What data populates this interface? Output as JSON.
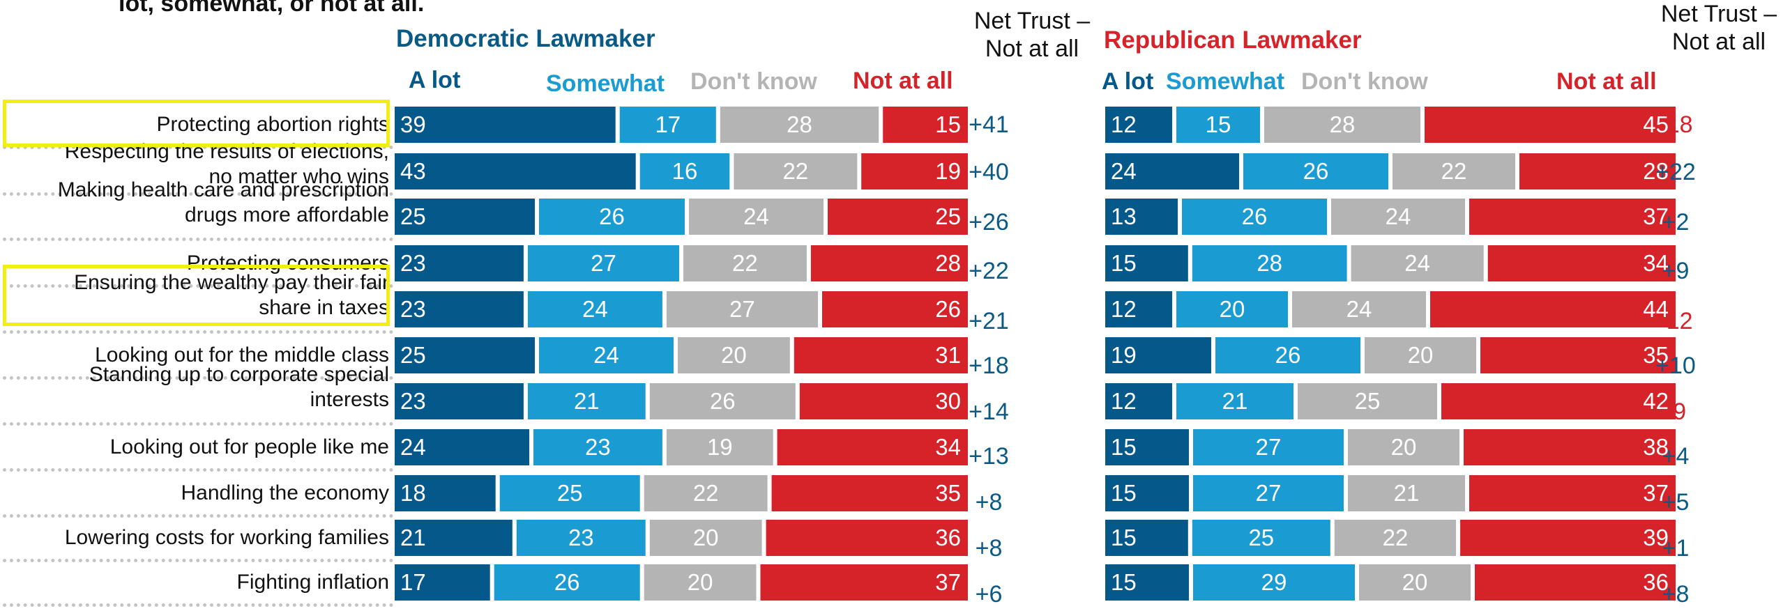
{
  "question_fragment": "lot, somewhat, or not at all.",
  "colors": {
    "a_lot": "#04588a",
    "somewhat": "#1a9bd1",
    "dont_know": "#b4b4b4",
    "not_at_all": "#d6232a",
    "highlight": "#f2ee12",
    "net_positive": "#0b5a86",
    "net_negative": "#d6232a",
    "title_dem": "#0b5a86",
    "title_rep": "#d6232a"
  },
  "column_headers": {
    "a_lot": "A lot",
    "somewhat": "Somewhat",
    "dont_know": "Don't know",
    "not_at_all": "Not at all",
    "net_trust": "Net Trust – Not at all"
  },
  "chart_data": [
    {
      "type": "bar",
      "stacked": true,
      "orientation": "horizontal",
      "title": "Democratic Lawmaker",
      "categories": [
        "Protecting abortion rights",
        "Respecting the results of elections, no matter who wins",
        "Making health care and prescription drugs more affordable",
        "Protecting consumers",
        "Ensuring the wealthy pay their fair share in taxes",
        "Looking out for the middle class",
        "Standing up to corporate special interests",
        "Looking out for people like me",
        "Handling the economy",
        "Lowering costs for working families",
        "Fighting inflation"
      ],
      "series": [
        {
          "name": "A lot",
          "values": [
            39,
            43,
            25,
            23,
            23,
            25,
            23,
            24,
            18,
            21,
            17
          ]
        },
        {
          "name": "Somewhat",
          "values": [
            17,
            16,
            26,
            27,
            24,
            24,
            21,
            23,
            25,
            23,
            26
          ]
        },
        {
          "name": "Don't know",
          "values": [
            28,
            22,
            24,
            22,
            27,
            20,
            26,
            19,
            22,
            20,
            20
          ]
        },
        {
          "name": "Not at all",
          "values": [
            15,
            19,
            25,
            28,
            26,
            31,
            30,
            34,
            35,
            36,
            37
          ]
        }
      ],
      "net_trust": [
        "+41",
        "+40",
        "+26",
        "+22",
        "+21",
        "+18",
        "+14",
        "+13",
        "+8",
        "+8",
        "+6"
      ],
      "highlighted": [
        0,
        4
      ]
    },
    {
      "type": "bar",
      "stacked": true,
      "orientation": "horizontal",
      "title": "Republican Lawmaker",
      "categories": [
        "Protecting abortion rights",
        "Respecting the results of elections, no matter who wins",
        "Making health care and prescription drugs more affordable",
        "Protecting consumers",
        "Ensuring the wealthy pay their fair share in taxes",
        "Looking out for the middle class",
        "Standing up to corporate special interests",
        "Looking out for people like me",
        "Handling the economy",
        "Lowering costs for working families",
        "Fighting inflation"
      ],
      "series": [
        {
          "name": "A lot",
          "values": [
            12,
            24,
            13,
            15,
            12,
            19,
            12,
            15,
            15,
            15,
            15
          ]
        },
        {
          "name": "Somewhat",
          "values": [
            15,
            26,
            26,
            28,
            20,
            26,
            21,
            27,
            27,
            25,
            29
          ]
        },
        {
          "name": "Don't know",
          "values": [
            28,
            22,
            24,
            24,
            24,
            20,
            25,
            20,
            21,
            22,
            20
          ]
        },
        {
          "name": "Not at all",
          "values": [
            45,
            28,
            37,
            34,
            44,
            35,
            42,
            38,
            37,
            39,
            36
          ]
        }
      ],
      "net_trust": [
        "-18",
        "+22",
        "+2",
        "+9",
        "-12",
        "+10",
        "-9",
        "+4",
        "+5",
        "+1",
        "+8"
      ]
    }
  ]
}
